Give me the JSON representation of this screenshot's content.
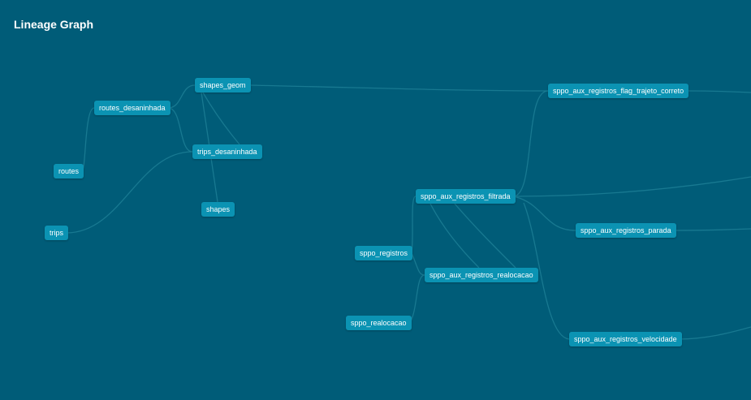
{
  "header": {
    "title": "Lineage Graph"
  },
  "nodes": {
    "routes": "routes",
    "trips": "trips",
    "routes_desaninhada": "routes_desaninhada",
    "shapes_geom": "shapes_geom",
    "trips_desaninhada": "trips_desaninhada",
    "shapes": "shapes",
    "sppo_aux_registros_flag_trajeto_correto": "sppo_aux_registros_flag_trajeto_correto",
    "sppo_aux_registros_filtrada": "sppo_aux_registros_filtrada",
    "sppo_aux_registros_parada": "sppo_aux_registros_parada",
    "sppo_registros": "sppo_registros",
    "sppo_aux_registros_realocacao": "sppo_aux_registros_realocacao",
    "sppo_realocacao": "sppo_realocacao",
    "sppo_aux_registros_velocidade": "sppo_aux_registros_velocidade"
  }
}
